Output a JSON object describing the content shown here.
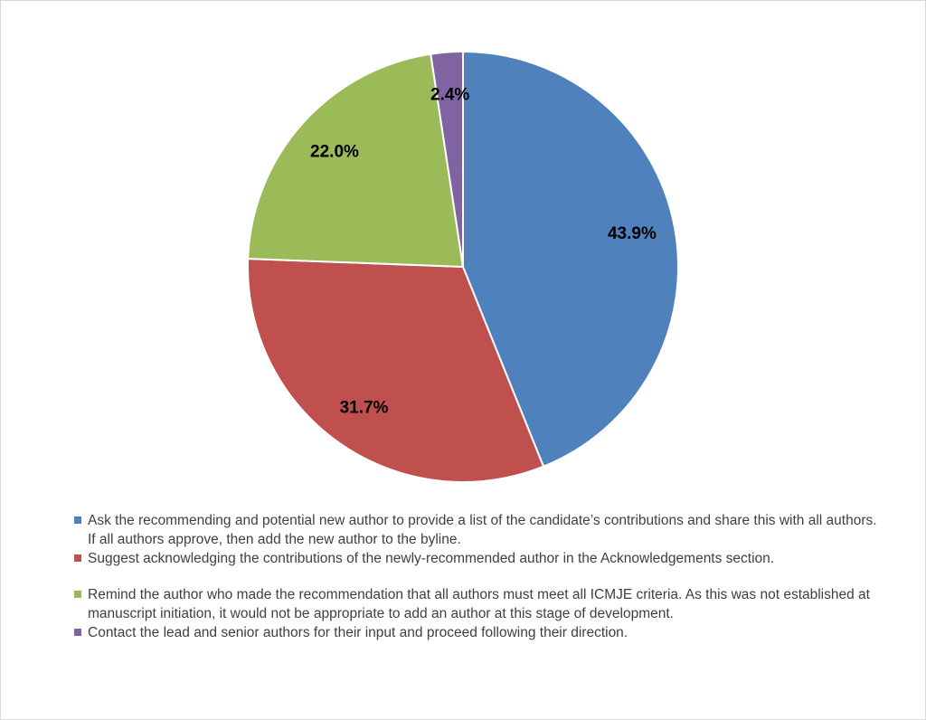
{
  "chart_data": {
    "type": "pie",
    "title": "",
    "slices": [
      {
        "name": "Ask the recommending and potential new author to provide a list of the candidate’s contributions and share this with all authors. If all authors approve, then add the new author to the byline.",
        "value": 43.9,
        "label": "43.9%",
        "color": "#4f81bd"
      },
      {
        "name": "Suggest acknowledging the contributions of the newly-recommended author in the Acknowledgements section.",
        "value": 31.7,
        "label": "31.7%",
        "color": "#c0504d"
      },
      {
        "name": "Remind the author who made the recommendation that all authors must meet all ICMJE criteria. As this was not established at manuscript initiation, it would not be appropriate to add an author at this stage of development.",
        "value": 22.0,
        "label": "22.0%",
        "color": "#9bbb59"
      },
      {
        "name": "Contact the lead and senior authors for their input and proceed following their direction.",
        "value": 2.4,
        "label": "2.4%",
        "color": "#8064a2"
      }
    ],
    "legend_position": "bottom"
  }
}
